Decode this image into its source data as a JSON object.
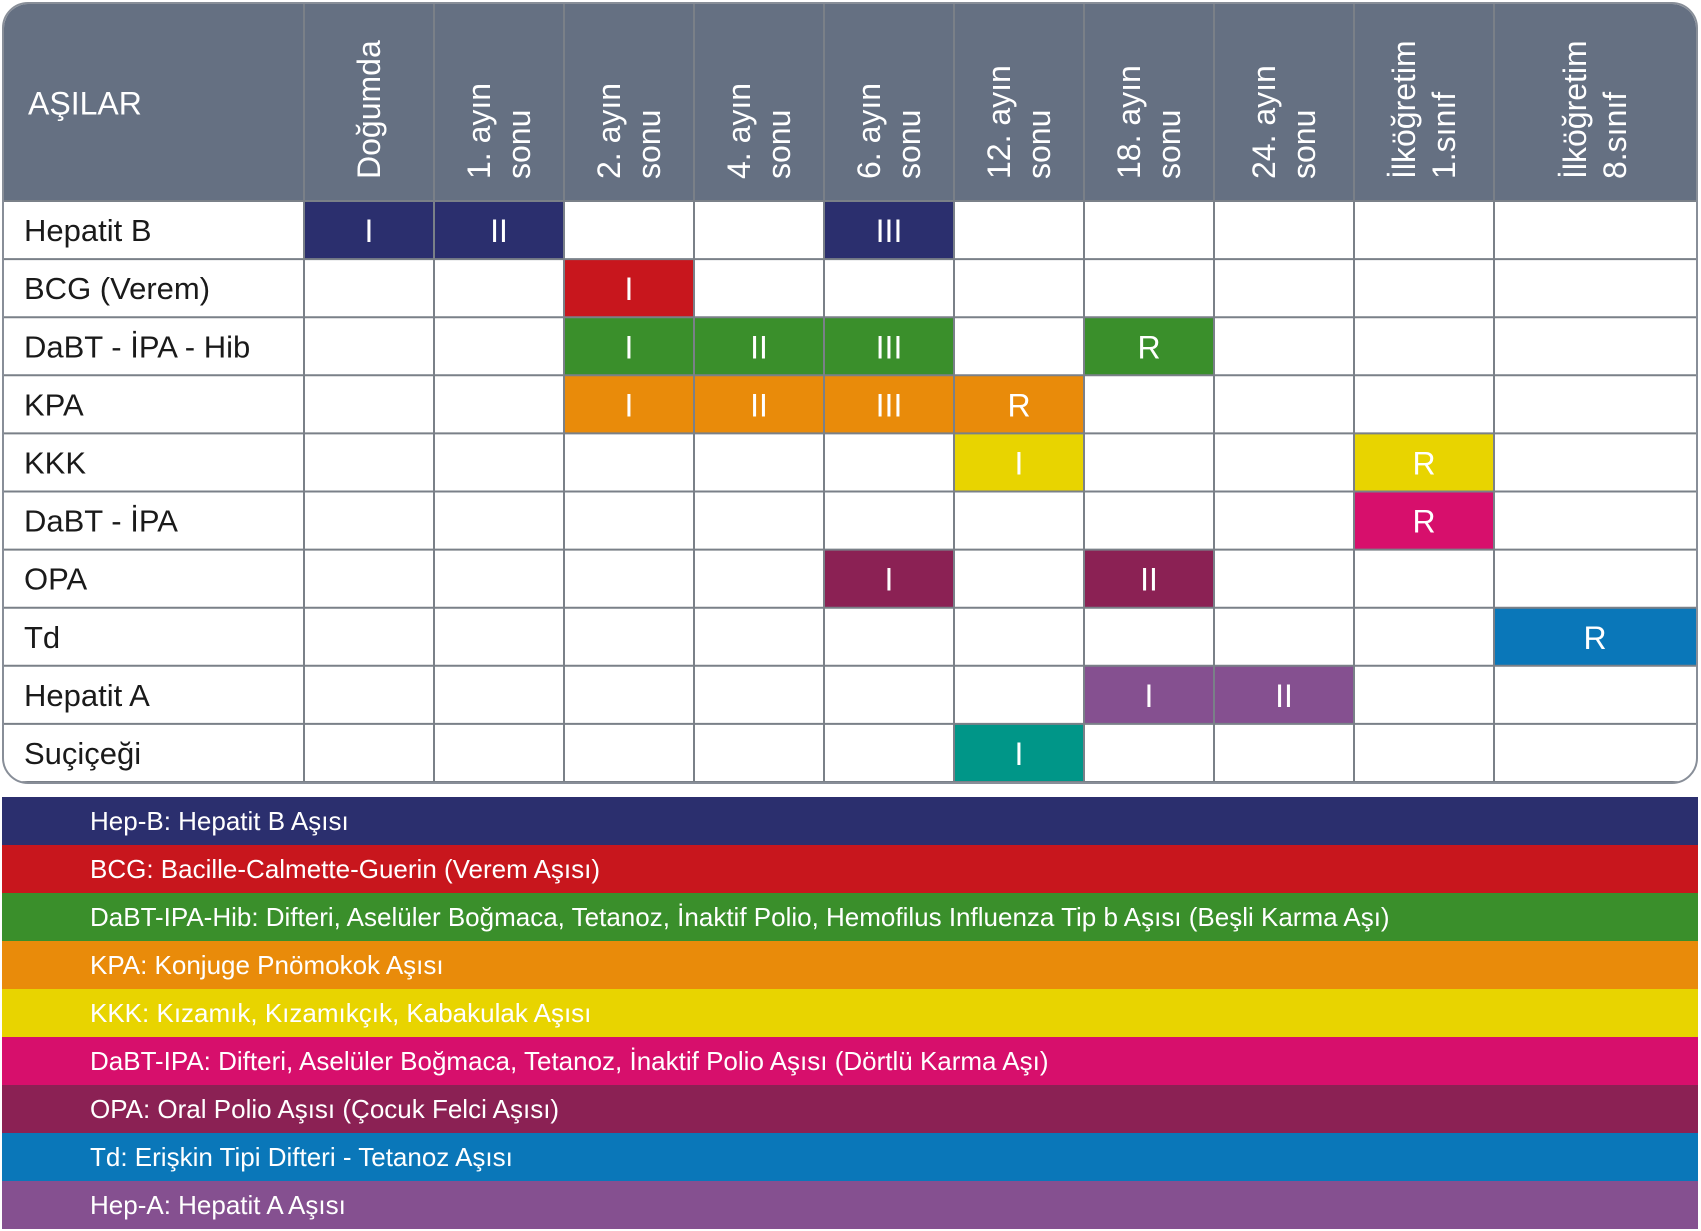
{
  "header": {
    "corner_label": "AŞILAR",
    "columns": [
      [
        "Doğumda"
      ],
      [
        "1. ayın",
        "sonu"
      ],
      [
        "2. ayın",
        "sonu"
      ],
      [
        "4. ayın",
        "sonu"
      ],
      [
        "6. ayın",
        "sonu"
      ],
      [
        "12. ayın",
        "sonu"
      ],
      [
        "18. ayın",
        "sonu"
      ],
      [
        "24. ayın",
        "sonu"
      ],
      [
        "İlköğretim",
        "1.sınıf"
      ],
      [
        "İlköğretim",
        "8.sınıf"
      ]
    ]
  },
  "colors": {
    "header_bg": "#657082",
    "grid_line": "#7a8088",
    "hepB": "#2b2f6e",
    "bcg": "#c8161d",
    "dabt_ipa_hib": "#3a8f2b",
    "kpa": "#e98b0a",
    "kkk": "#e8d400",
    "dabt_ipa": "#d70f6c",
    "opa": "#8b2154",
    "td": "#0a77b9",
    "hepA": "#855090",
    "suciçegi": "#009688"
  },
  "chart_data": {
    "type": "table",
    "rows": [
      {
        "vaccine": "Hepatit B",
        "color": "#2b2f6e",
        "doses": [
          {
            "col": 0,
            "label": "I"
          },
          {
            "col": 1,
            "label": "II"
          },
          {
            "col": 4,
            "label": "III"
          }
        ]
      },
      {
        "vaccine": "BCG (Verem)",
        "color": "#c8161d",
        "doses": [
          {
            "col": 2,
            "label": "I"
          }
        ]
      },
      {
        "vaccine": "DaBT - İPA - Hib",
        "color": "#3a8f2b",
        "doses": [
          {
            "col": 2,
            "label": "I"
          },
          {
            "col": 3,
            "label": "II"
          },
          {
            "col": 4,
            "label": "III"
          },
          {
            "col": 6,
            "label": "R"
          }
        ]
      },
      {
        "vaccine": "KPA",
        "color": "#e98b0a",
        "doses": [
          {
            "col": 2,
            "label": "I"
          },
          {
            "col": 3,
            "label": "II"
          },
          {
            "col": 4,
            "label": "III"
          },
          {
            "col": 5,
            "label": "R"
          }
        ]
      },
      {
        "vaccine": "KKK",
        "color": "#e8d400",
        "doses": [
          {
            "col": 5,
            "label": "I"
          },
          {
            "col": 8,
            "label": "R"
          }
        ]
      },
      {
        "vaccine": "DaBT - İPA",
        "color": "#d70f6c",
        "doses": [
          {
            "col": 8,
            "label": "R"
          }
        ]
      },
      {
        "vaccine": "OPA",
        "color": "#8b2154",
        "doses": [
          {
            "col": 4,
            "label": "I"
          },
          {
            "col": 6,
            "label": "II"
          }
        ]
      },
      {
        "vaccine": "Td",
        "color": "#0a77b9",
        "doses": [
          {
            "col": 9,
            "label": "R"
          }
        ]
      },
      {
        "vaccine": "Hepatit A",
        "color": "#855090",
        "doses": [
          {
            "col": 6,
            "label": "I"
          },
          {
            "col": 7,
            "label": "II"
          }
        ]
      },
      {
        "vaccine": "Suçiçeği",
        "color": "#009688",
        "doses": [
          {
            "col": 5,
            "label": "I"
          }
        ]
      }
    ]
  },
  "legend": {
    "items": [
      {
        "text": "Hep-B: Hepatit B Aşısı",
        "color": "#2b2f6e"
      },
      {
        "text": "BCG: Bacille-Calmette-Guerin (Verem Aşısı)",
        "color": "#c8161d"
      },
      {
        "text": "DaBT-IPA-Hib: Difteri, Aselüler Boğmaca, Tetanoz, İnaktif Polio, Hemofilus Influenza Tip b Aşısı (Beşli Karma Aşı)",
        "color": "#3a8f2b"
      },
      {
        "text": "KPA: Konjuge Pnömokok Aşısı",
        "color": "#e98b0a"
      },
      {
        "text": "KKK: Kızamık, Kızamıkçık, Kabakulak Aşısı",
        "color": "#e8d400"
      },
      {
        "text": "DaBT-IPA: Difteri, Aselüler Boğmaca, Tetanoz, İnaktif Polio Aşısı (Dörtlü Karma Aşı)",
        "color": "#d70f6c"
      },
      {
        "text": "OPA: Oral Polio Aşısı (Çocuk Felci Aşısı)",
        "color": "#8b2154"
      },
      {
        "text": "Td: Erişkin Tipi Difteri - Tetanoz Aşısı",
        "color": "#0a77b9"
      },
      {
        "text": "Hep-A: Hepatit A Aşısı",
        "color": "#855090"
      }
    ]
  }
}
